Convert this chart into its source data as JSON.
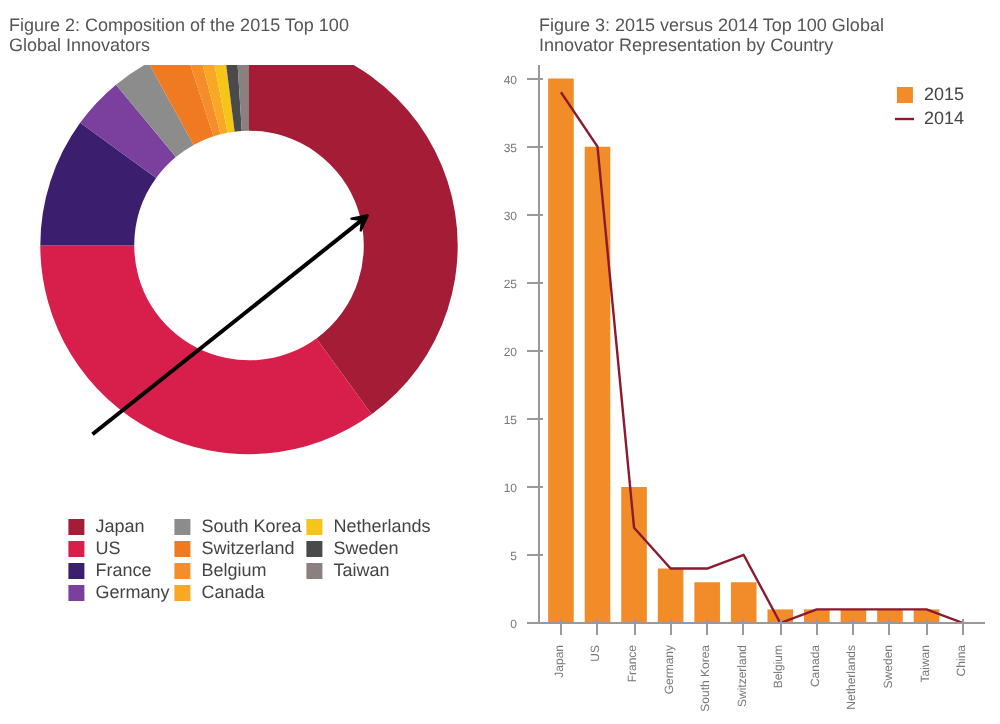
{
  "chart_data": [
    {
      "type": "donut",
      "title": "Figure 2: Composition of the 2015 Top 100 Global Innovators",
      "categories": [
        "Japan",
        "US",
        "France",
        "Germany",
        "South Korea",
        "Switzerland",
        "Belgium",
        "Canada",
        "Netherlands",
        "Sweden",
        "Taiwan"
      ],
      "values": [
        40,
        35,
        10,
        4,
        3,
        3,
        1,
        1,
        1,
        1,
        1
      ],
      "colors": [
        "#a51c36",
        "#d81e4a",
        "#3b1f6e",
        "#7b3f9e",
        "#8c8c8c",
        "#f07a22",
        "#f58d2a",
        "#f9a825",
        "#f5c518",
        "#4a4a4a",
        "#8a8080"
      ],
      "legend": "bottom"
    },
    {
      "type": "bar",
      "title": "Figure 3: 2015 versus 2014 Top 100 Global Innovator Representation by Country",
      "categories": [
        "Japan",
        "US",
        "France",
        "Germany",
        "South Korea",
        "Switzerland",
        "Belgium",
        "Canada",
        "Netherlands",
        "Sweden",
        "Taiwan",
        "China"
      ],
      "series": [
        {
          "name": "2015",
          "color": "#f28c28",
          "values": [
            40,
            35,
            10,
            4,
            3,
            3,
            1,
            1,
            1,
            1,
            1,
            0
          ]
        },
        {
          "name": "2014",
          "type": "line",
          "color": "#8b1a2e",
          "values": [
            39,
            35,
            7,
            4,
            4,
            5,
            0,
            1,
            1,
            1,
            1,
            0
          ]
        }
      ],
      "ylim": [
        0,
        41
      ],
      "yticks": [
        0,
        5,
        10,
        15,
        20,
        25,
        30,
        35,
        40
      ],
      "legend": "top right",
      "grid": false
    }
  ]
}
